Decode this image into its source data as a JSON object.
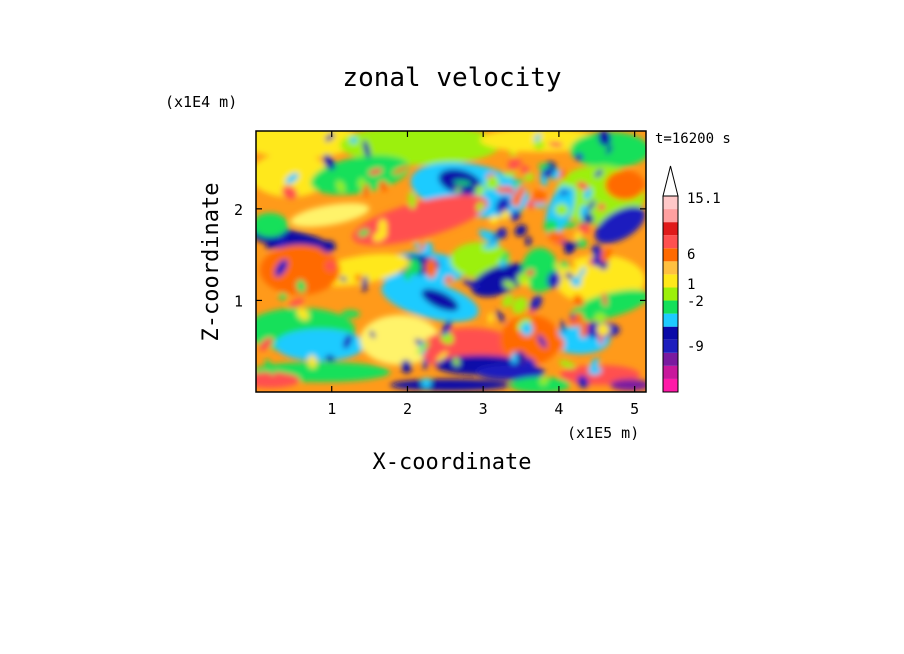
{
  "chart_data": {
    "type": "heatmap",
    "title": "zonal velocity",
    "time_label": "t=16200 s",
    "xlabel": "X-coordinate",
    "ylabel": "Z-coordinate",
    "x_unit": "(x1E5 m)",
    "y_unit": "(x1E4 m)",
    "xlim": [
      0,
      5.15
    ],
    "ylim": [
      0,
      2.85
    ],
    "x_ticks": [
      1,
      2,
      3,
      4,
      5
    ],
    "y_ticks": [
      1,
      2
    ],
    "x_tick_labels": [
      "1",
      "2",
      "3",
      "4",
      "5"
    ],
    "y_tick_labels": [
      "1",
      "2"
    ],
    "colorbar": {
      "levels": [
        {
          "color": "#ff1aa8"
        },
        {
          "color": "#c8189c"
        },
        {
          "color": "#7a1aa0"
        },
        {
          "color": "#1e1ebe"
        },
        {
          "color": "#0a0aa8"
        },
        {
          "color": "#1ecbff"
        },
        {
          "color": "#14e05a"
        },
        {
          "color": "#9cf00a"
        },
        {
          "color": "#ffe81a"
        },
        {
          "color": "#ffc040"
        },
        {
          "color": "#ff6a00"
        },
        {
          "color": "#ff5050"
        },
        {
          "color": "#e01a1a"
        },
        {
          "color": "#ffa0a0"
        },
        {
          "color": "#ffc8c8"
        }
      ],
      "tick_labels": [
        "15.1",
        "6",
        "1",
        "-2",
        "-9"
      ],
      "top_arrow_color": "#ffffff"
    },
    "field_features": [
      {
        "desc": "blue jet band",
        "x": 3.2,
        "z": 0.25,
        "value": -9
      },
      {
        "desc": "blue upper core",
        "x": 2.6,
        "z": 2.35,
        "value": -9
      },
      {
        "desc": "blue mid core",
        "x": 3.0,
        "z": 1.4,
        "value": -9
      },
      {
        "desc": "orange bulk",
        "x": 1.5,
        "z": 1.1,
        "value": 6
      },
      {
        "desc": "cyan lower left",
        "x": 1.0,
        "z": 0.6,
        "value": -2
      }
    ]
  }
}
